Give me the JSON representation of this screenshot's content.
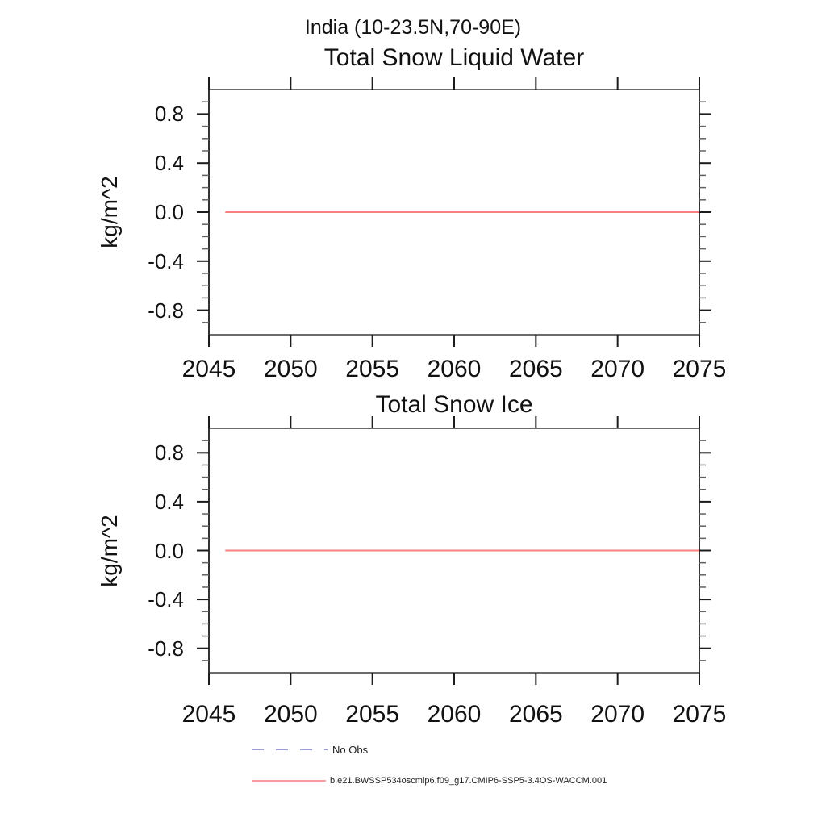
{
  "page_title": "India (10-23.5N,70-90E)",
  "legend": {
    "items": [
      {
        "label": "No Obs",
        "style": "dashed",
        "color": "#7878d2"
      },
      {
        "label": "b.e21.BWSSP534oscmip6.f09_g17.CMIP6-SSP5-3.4OS-WACCM.001",
        "style": "solid",
        "color": "#f97f7f"
      }
    ]
  },
  "chart_data": [
    {
      "type": "line",
      "title": "Total Snow Liquid Water",
      "xlabel": "",
      "ylabel": "kg/m^2",
      "xlim": [
        2045,
        2075
      ],
      "ylim": [
        -1.0,
        1.0
      ],
      "grid": false,
      "x_ticks": [
        2045,
        2050,
        2055,
        2060,
        2065,
        2070,
        2075
      ],
      "x_tick_labels": [
        "2045",
        "2050",
        "2055",
        "2060",
        "2065",
        "2070",
        "2075"
      ],
      "y_ticks": [
        0.8,
        0.4,
        0.0,
        -0.4,
        -0.8
      ],
      "y_tick_labels": [
        "0.8",
        "0.4",
        "0.0",
        "-0.4",
        "-0.8"
      ],
      "y_minor_step": 0.1,
      "series": [
        {
          "name": "b.e21.BWSSP534oscmip6.f09_g17.CMIP6-SSP5-3.4OS-WACCM.001",
          "color": "#f97f7f",
          "x": [
            2046,
            2075
          ],
          "y": [
            0.0,
            0.0
          ],
          "description": "constant zero line"
        }
      ]
    },
    {
      "type": "line",
      "title": "Total Snow Ice",
      "xlabel": "",
      "ylabel": "kg/m^2",
      "xlim": [
        2045,
        2075
      ],
      "ylim": [
        -1.0,
        1.0
      ],
      "grid": false,
      "x_ticks": [
        2045,
        2050,
        2055,
        2060,
        2065,
        2070,
        2075
      ],
      "x_tick_labels": [
        "2045",
        "2050",
        "2055",
        "2060",
        "2065",
        "2070",
        "2075"
      ],
      "y_ticks": [
        0.8,
        0.4,
        0.0,
        -0.4,
        -0.8
      ],
      "y_tick_labels": [
        "0.8",
        "0.4",
        "0.0",
        "-0.4",
        "-0.8"
      ],
      "y_minor_step": 0.1,
      "series": [
        {
          "name": "b.e21.BWSSP534oscmip6.f09_g17.CMIP6-SSP5-3.4OS-WACCM.001",
          "color": "#f97f7f",
          "x": [
            2046,
            2075
          ],
          "y": [
            0.0,
            0.0
          ],
          "description": "constant zero line"
        }
      ]
    }
  ]
}
